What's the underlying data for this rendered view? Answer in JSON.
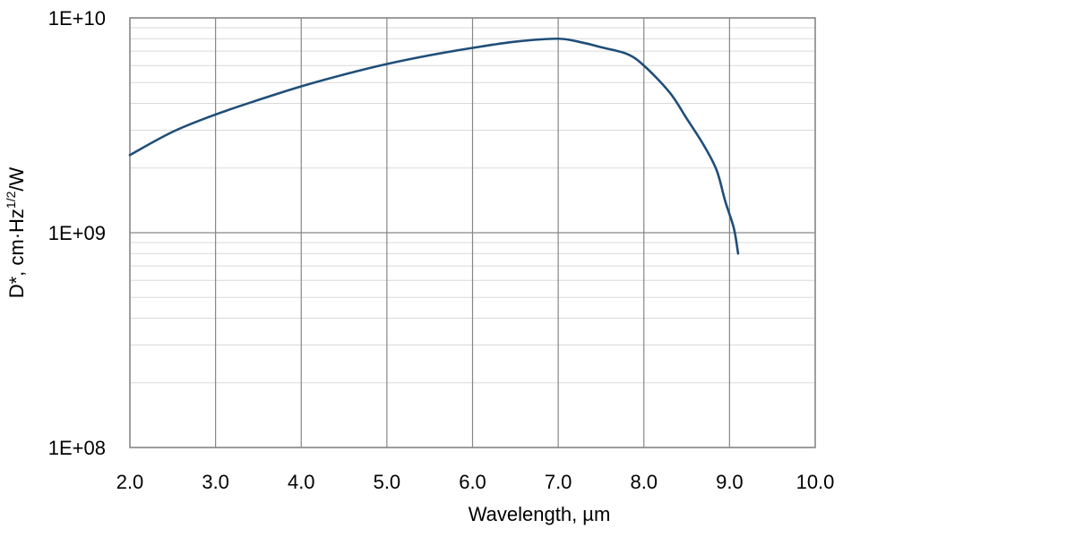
{
  "chart_data": {
    "type": "line",
    "title": "",
    "xlabel": "Wavelength, µm",
    "ylabel": {
      "prefix": "D*, cm·Hz",
      "superscript": "1/2",
      "suffix": "/W"
    },
    "xlim": [
      2.0,
      10.0
    ],
    "ylim": [
      100000000,
      10000000000
    ],
    "yscale": "log",
    "grid": true,
    "x_ticks": [
      "2.0",
      "3.0",
      "4.0",
      "5.0",
      "6.0",
      "7.0",
      "8.0",
      "9.0",
      "10.0"
    ],
    "y_ticks": [
      {
        "value": 100000000,
        "label": "1E+08"
      },
      {
        "value": 1000000000,
        "label": "1E+09"
      },
      {
        "value": 10000000000,
        "label": "1E+10"
      }
    ],
    "series": [
      {
        "color": "#1f4e79",
        "x": [
          2.0,
          2.5,
          3.0,
          3.5,
          4.0,
          4.5,
          5.0,
          5.5,
          6.0,
          6.5,
          7.0,
          7.3,
          7.5,
          7.8,
          8.0,
          8.3,
          8.5,
          8.7,
          8.85,
          8.95,
          9.05,
          9.1
        ],
        "y": [
          2300000000,
          2950000000,
          3550000000,
          4150000000,
          4800000000,
          5450000000,
          6100000000,
          6700000000,
          7250000000,
          7750000000,
          8000000000,
          7650000000,
          7300000000,
          6800000000,
          6000000000,
          4500000000,
          3400000000,
          2550000000,
          1950000000,
          1400000000,
          1050000000,
          800000000
        ]
      }
    ]
  }
}
